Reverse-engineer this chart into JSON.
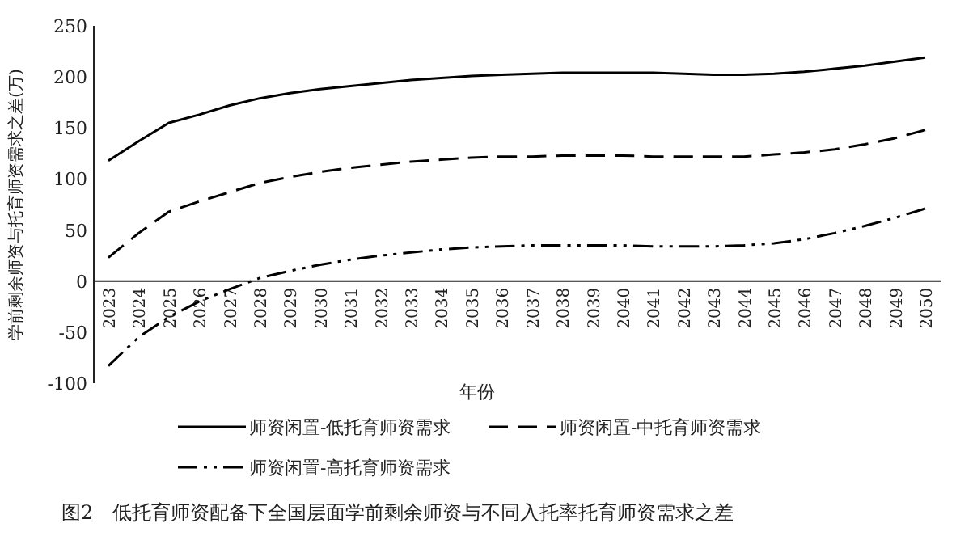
{
  "chart_data": {
    "type": "line",
    "title": "图2　低托育师资配备下全国层面学前剩余师资与不同入托率托育师资需求之差",
    "xlabel": "年份",
    "ylabel": "学前剩余师资与托育师资需求之差(万)",
    "categories": [
      "2023",
      "2024",
      "2025",
      "2026",
      "2027",
      "2028",
      "2029",
      "2030",
      "2031",
      "2032",
      "2033",
      "2034",
      "2035",
      "2036",
      "2037",
      "2038",
      "2039",
      "2040",
      "2041",
      "2042",
      "2043",
      "2044",
      "2045",
      "2046",
      "2047",
      "2048",
      "2049",
      "2050"
    ],
    "series": [
      {
        "name": "师资闲置-低托育师资需求",
        "color": "#000000",
        "line_style": "solid",
        "values": [
          118,
          137,
          155,
          163,
          172,
          179,
          184,
          188,
          191,
          194,
          197,
          199,
          201,
          202,
          203,
          204,
          204,
          204,
          204,
          203,
          202,
          202,
          203,
          205,
          208,
          211,
          215,
          219
        ]
      },
      {
        "name": "师资闲置-中托育师资需求",
        "color": "#000000",
        "line_style": "dashed",
        "values": [
          23,
          47,
          68,
          78,
          87,
          96,
          102,
          107,
          111,
          114,
          117,
          119,
          121,
          122,
          122,
          123,
          123,
          123,
          122,
          122,
          122,
          122,
          124,
          126,
          129,
          134,
          140,
          148
        ]
      },
      {
        "name": "师资闲置-高托育师资需求",
        "color": "#000000",
        "line_style": "dotted",
        "values": [
          -83,
          -55,
          -35,
          -20,
          -8,
          3,
          10,
          16,
          21,
          25,
          28,
          31,
          33,
          34,
          35,
          35,
          35,
          35,
          34,
          34,
          34,
          35,
          37,
          41,
          47,
          54,
          62,
          71
        ]
      }
    ],
    "ylim": [
      -100,
      250
    ],
    "yticks": [
      -100,
      -50,
      0,
      50,
      100,
      150,
      200,
      250
    ],
    "grid": false,
    "legend": "bottom",
    "marker": "none"
  }
}
